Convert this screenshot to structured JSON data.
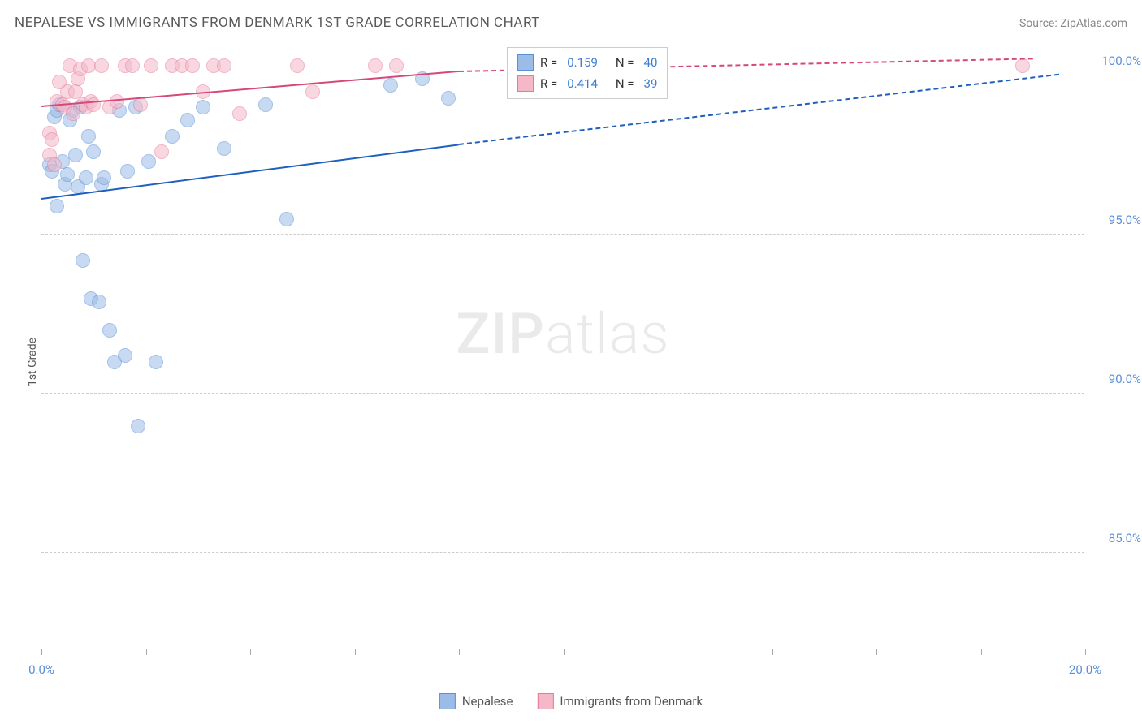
{
  "title": "NEPALESE VS IMMIGRANTS FROM DENMARK 1ST GRADE CORRELATION CHART",
  "source_label": "Source: ZipAtlas.com",
  "y_axis_title": "1st Grade",
  "watermark": {
    "bold": "ZIP",
    "light": "atlas"
  },
  "chart": {
    "type": "scatter",
    "xlim": [
      0,
      20
    ],
    "ylim": [
      82,
      101
    ],
    "x_ticks": [
      0,
      2,
      4,
      6,
      8,
      10,
      12,
      14,
      16,
      18,
      20
    ],
    "x_tick_labels": {
      "0": "0.0%",
      "20": "20.0%"
    },
    "y_ticks": [
      85,
      90,
      95,
      100
    ],
    "y_tick_labels": {
      "85": "85.0%",
      "90": "90.0%",
      "95": "95.0%",
      "100": "100.0%"
    },
    "background_color": "#ffffff",
    "grid_color": "#cccccc",
    "point_radius": 9,
    "point_opacity": 0.55,
    "series": [
      {
        "name": "Nepalese",
        "fill_color": "#9bbce6",
        "stroke_color": "#5b8fd6",
        "trend_color": "#1f5fbf",
        "R": "0.159",
        "N": "40",
        "trend": {
          "x1": 0,
          "y1": 96.1,
          "x2": 8.0,
          "y2": 97.8,
          "x2_dash": 19.5,
          "y2_dash": 100.0
        },
        "points": [
          [
            0.15,
            97.2
          ],
          [
            0.2,
            97.0
          ],
          [
            0.25,
            98.7
          ],
          [
            0.3,
            95.9
          ],
          [
            0.3,
            98.9
          ],
          [
            0.35,
            99.1
          ],
          [
            0.4,
            97.3
          ],
          [
            0.45,
            96.6
          ],
          [
            0.5,
            96.9
          ],
          [
            0.55,
            98.6
          ],
          [
            0.6,
            98.9
          ],
          [
            0.65,
            97.5
          ],
          [
            0.7,
            96.5
          ],
          [
            0.75,
            99.0
          ],
          [
            0.8,
            94.2
          ],
          [
            0.85,
            96.8
          ],
          [
            0.9,
            98.1
          ],
          [
            0.95,
            93.0
          ],
          [
            1.0,
            97.6
          ],
          [
            1.1,
            92.9
          ],
          [
            1.15,
            96.6
          ],
          [
            1.2,
            96.8
          ],
          [
            1.3,
            92.0
          ],
          [
            1.4,
            91.0
          ],
          [
            1.5,
            98.9
          ],
          [
            1.6,
            91.2
          ],
          [
            1.65,
            97.0
          ],
          [
            1.8,
            99.0
          ],
          [
            1.85,
            89.0
          ],
          [
            2.05,
            97.3
          ],
          [
            2.2,
            91.0
          ],
          [
            2.5,
            98.1
          ],
          [
            2.8,
            98.6
          ],
          [
            3.1,
            99.0
          ],
          [
            3.5,
            97.7
          ],
          [
            4.3,
            99.1
          ],
          [
            4.7,
            95.5
          ],
          [
            6.7,
            99.7
          ],
          [
            7.3,
            99.9
          ],
          [
            7.8,
            99.3
          ]
        ]
      },
      {
        "name": "Immigrants from Denmark",
        "fill_color": "#f5b8c9",
        "stroke_color": "#e67a9a",
        "trend_color": "#d6487a",
        "R": "0.414",
        "N": "39",
        "trend": {
          "x1": 0,
          "y1": 99.0,
          "x2": 8.0,
          "y2": 100.1,
          "x2_dash": 19.0,
          "y2_dash": 100.5
        },
        "points": [
          [
            0.15,
            97.5
          ],
          [
            0.15,
            98.2
          ],
          [
            0.2,
            98.0
          ],
          [
            0.25,
            97.2
          ],
          [
            0.3,
            99.2
          ],
          [
            0.35,
            99.8
          ],
          [
            0.4,
            99.1
          ],
          [
            0.45,
            99.0
          ],
          [
            0.5,
            99.5
          ],
          [
            0.55,
            100.3
          ],
          [
            0.6,
            98.8
          ],
          [
            0.65,
            99.5
          ],
          [
            0.7,
            99.9
          ],
          [
            0.75,
            100.2
          ],
          [
            0.8,
            99.1
          ],
          [
            0.85,
            99.0
          ],
          [
            0.9,
            100.3
          ],
          [
            0.95,
            99.2
          ],
          [
            1.0,
            99.1
          ],
          [
            1.15,
            100.3
          ],
          [
            1.3,
            99.0
          ],
          [
            1.45,
            99.2
          ],
          [
            1.6,
            100.3
          ],
          [
            1.75,
            100.3
          ],
          [
            1.9,
            99.1
          ],
          [
            2.1,
            100.3
          ],
          [
            2.3,
            97.6
          ],
          [
            2.5,
            100.3
          ],
          [
            2.7,
            100.3
          ],
          [
            2.9,
            100.3
          ],
          [
            3.1,
            99.5
          ],
          [
            3.3,
            100.3
          ],
          [
            3.5,
            100.3
          ],
          [
            3.8,
            98.8
          ],
          [
            4.9,
            100.3
          ],
          [
            5.2,
            99.5
          ],
          [
            6.4,
            100.3
          ],
          [
            6.8,
            100.3
          ],
          [
            18.8,
            100.3
          ]
        ]
      }
    ]
  },
  "stats_legend": {
    "rows": [
      {
        "swatch_fill": "#9bbce6",
        "swatch_border": "#5b8fd6",
        "r_label": "R =",
        "r_val": "0.159",
        "n_label": "N =",
        "n_val": "40"
      },
      {
        "swatch_fill": "#f5b8c9",
        "swatch_border": "#e67a9a",
        "r_label": "R =",
        "r_val": "0.414",
        "n_label": "N =",
        "n_val": "39"
      }
    ]
  },
  "bottom_legend": [
    {
      "swatch_fill": "#9bbce6",
      "swatch_border": "#5b8fd6",
      "label": "Nepalese"
    },
    {
      "swatch_fill": "#f5b8c9",
      "swatch_border": "#e67a9a",
      "label": "Immigrants from Denmark"
    }
  ]
}
